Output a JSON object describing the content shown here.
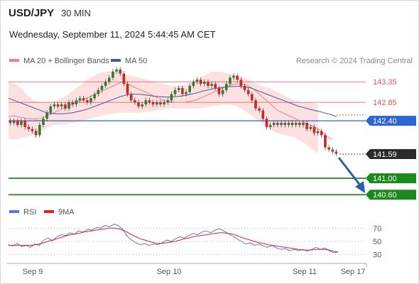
{
  "header": {
    "pair": "USD/JPY",
    "timeframe": "30 MIN",
    "datetime": "Wednesday, September 11, 2024 5:44:45 AM CET"
  },
  "legend": {
    "ma20_label": "MA 20 + Bollinger Bands",
    "ma50_label": "MA 50",
    "rsi_label": "RSI",
    "ma9_label": "9MA",
    "copyright": "Research © 2024 Trading Central"
  },
  "colors": {
    "bollinger_fill": "#fde0e0",
    "ma20": "#f08080",
    "ma50": "#3a5fa0",
    "resistance": "#e05555",
    "pivot": "#2a66d6",
    "support": "#1a8a1a",
    "current": "#2b2b2b",
    "arrow": "#2d5fa8",
    "rsi": "#5577dd",
    "rsi_ma": "#dd2222",
    "bull_candle": "#2e7d32",
    "bear_candle": "#c62828"
  },
  "chart_data": [
    {
      "type": "candlestick",
      "title": "USD/JPY",
      "ylim": [
        140.5,
        143.7
      ],
      "x_labels": [
        "Sep 9",
        "Sep 10",
        "Sep 11",
        "Sep 17"
      ],
      "levels": [
        {
          "value": 143.35,
          "label": "143.35",
          "kind": "resistance"
        },
        {
          "value": 142.85,
          "label": "142.85",
          "kind": "resistance"
        },
        {
          "value": 142.4,
          "label": "142.40",
          "kind": "pivot"
        },
        {
          "value": 141.59,
          "label": "141.59",
          "kind": "current"
        },
        {
          "value": 141.0,
          "label": "141.00",
          "kind": "support"
        },
        {
          "value": 140.6,
          "label": "140.60",
          "kind": "support"
        }
      ],
      "series_close": [
        142.35,
        142.4,
        142.3,
        142.4,
        142.25,
        142.2,
        142.15,
        142.05,
        142.3,
        142.45,
        142.6,
        142.75,
        142.8,
        142.75,
        142.8,
        142.7,
        142.85,
        142.8,
        142.9,
        142.95,
        142.9,
        142.85,
        142.95,
        143.05,
        143.15,
        143.25,
        143.35,
        143.45,
        143.6,
        143.65,
        143.55,
        143.3,
        143.05,
        142.9,
        142.85,
        142.75,
        142.8,
        142.9,
        142.85,
        142.8,
        142.85,
        142.8,
        142.85,
        142.9,
        143.05,
        143.15,
        143.2,
        143.05,
        143.1,
        143.25,
        143.35,
        143.4,
        143.3,
        143.35,
        143.25,
        143.3,
        143.2,
        143.05,
        143.15,
        143.3,
        143.45,
        143.5,
        143.4,
        143.25,
        143.15,
        143.05,
        142.9,
        142.7,
        142.65,
        142.45,
        142.25,
        142.3,
        142.35,
        142.3,
        142.35,
        142.3,
        142.35,
        142.3,
        142.35,
        142.3,
        142.35,
        142.2,
        142.25,
        142.1,
        142.15,
        142.05,
        141.75,
        141.7,
        141.65,
        141.6
      ],
      "ma20": [
        142.5,
        142.52,
        142.5,
        142.48,
        142.46,
        142.45,
        142.44,
        142.46,
        142.5,
        142.55,
        142.6,
        142.65,
        142.7,
        142.75,
        142.8,
        142.85,
        142.9,
        142.95,
        143.0,
        143.05,
        143.1,
        143.15,
        143.2,
        143.25,
        143.3,
        143.35,
        143.3,
        143.25,
        143.2,
        143.15,
        143.1,
        143.05,
        143.0,
        142.95,
        142.9,
        142.88,
        142.86,
        142.85,
        142.85,
        142.86,
        142.88,
        142.9,
        142.95,
        143.0,
        143.05,
        143.1,
        143.15,
        143.2,
        143.25,
        143.28,
        143.3,
        143.3,
        143.28,
        143.22,
        143.15,
        143.05,
        142.95,
        142.85,
        142.75,
        142.65,
        142.6,
        142.55,
        142.5,
        142.45,
        142.4,
        142.35,
        142.3,
        142.25,
        142.2,
        142.1,
        142.0,
        141.95
      ],
      "ma50": [
        142.95,
        142.9,
        142.85,
        142.8,
        142.75,
        142.7,
        142.65,
        142.6,
        142.58,
        142.57,
        142.57,
        142.58,
        142.6,
        142.63,
        142.66,
        142.7,
        142.75,
        142.8,
        142.85,
        142.9,
        142.95,
        143.0,
        143.03,
        143.05,
        143.05,
        143.04,
        143.02,
        143.0,
        142.99,
        142.98,
        142.98,
        142.99,
        143.0,
        143.02,
        143.05,
        143.08,
        143.12,
        143.15,
        143.18,
        143.2,
        143.22,
        143.23,
        143.24,
        143.24,
        143.23,
        143.2,
        143.15,
        143.1,
        143.05,
        143.0,
        142.95,
        142.9,
        142.85,
        142.8,
        142.75,
        142.72,
        142.68,
        142.65,
        142.62,
        142.58,
        142.55,
        142.5
      ],
      "bollinger_upper": [
        143.35,
        143.3,
        143.1,
        142.9,
        142.85,
        142.85,
        142.9,
        143.0,
        143.15,
        143.3,
        143.45,
        143.55,
        143.6,
        143.6,
        143.55,
        143.5,
        143.45,
        143.4,
        143.35,
        143.3,
        143.25,
        143.25,
        143.3,
        143.4,
        143.5,
        143.6,
        143.6,
        143.55,
        143.5,
        143.45,
        143.35,
        143.25,
        143.2,
        143.1,
        143.0,
        142.9,
        142.85,
        142.85,
        142.8
      ],
      "bollinger_lower": [
        141.95,
        141.95,
        142.0,
        142.05,
        142.15,
        142.25,
        142.3,
        142.32,
        142.35,
        142.4,
        142.45,
        142.5,
        142.55,
        142.58,
        142.6,
        142.6,
        142.6,
        142.62,
        142.65,
        142.68,
        142.7,
        142.7,
        142.7,
        142.7,
        142.72,
        142.75,
        142.78,
        142.8,
        142.75,
        142.65,
        142.5,
        142.35,
        142.2,
        142.1,
        142.05,
        142.0,
        141.9,
        141.75,
        141.6
      ]
    },
    {
      "type": "line",
      "title": "RSI",
      "ylim": [
        20,
        80
      ],
      "yticks": [
        70,
        50,
        30
      ],
      "series": [
        {
          "name": "RSI",
          "values": [
            45,
            43,
            47,
            42,
            44,
            41,
            46,
            44,
            52,
            55,
            51,
            57,
            60,
            59,
            63,
            61,
            66,
            64,
            68,
            67,
            71,
            70,
            74,
            72,
            76,
            74,
            68,
            58,
            52,
            48,
            45,
            47,
            44,
            46,
            45,
            48,
            52,
            50,
            54,
            57,
            55,
            59,
            62,
            60,
            64,
            66,
            63,
            67,
            69,
            66,
            62,
            58,
            54,
            50,
            46,
            48,
            44,
            46,
            43,
            41,
            44,
            40,
            38,
            39,
            36,
            38,
            36,
            38,
            35,
            38,
            41,
            38,
            40,
            36,
            33,
            34
          ]
        },
        {
          "name": "9MA",
          "values": [
            44,
            44,
            44,
            44,
            44,
            44,
            45,
            46,
            48,
            50,
            52,
            54,
            56,
            58,
            60,
            61,
            62,
            64,
            65,
            66,
            67,
            68,
            69,
            70,
            70,
            69,
            67,
            64,
            60,
            57,
            54,
            52,
            50,
            48,
            47,
            47,
            48,
            49,
            50,
            52,
            54,
            55,
            57,
            58,
            59,
            60,
            61,
            62,
            63,
            63,
            62,
            61,
            59,
            56,
            54,
            52,
            50,
            48,
            47,
            45,
            44,
            43,
            42,
            41,
            40,
            39,
            38,
            37,
            37,
            37,
            38,
            38,
            38,
            37,
            35,
            34
          ]
        }
      ]
    }
  ]
}
